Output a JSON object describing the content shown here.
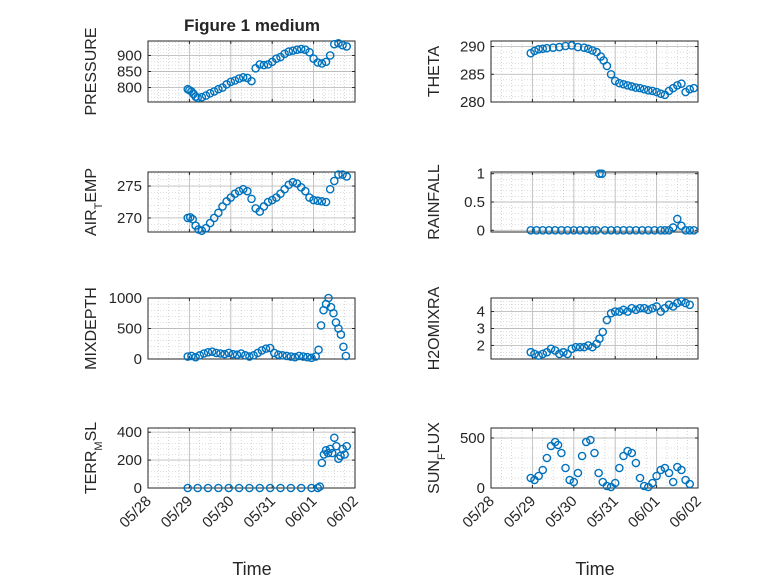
{
  "figure": {
    "title": "Figure 1 medium",
    "xlabel_left": "Time",
    "xlabel_right": "Time",
    "x_tick_labels": [
      "05/28",
      "05/29",
      "05/30",
      "05/31",
      "06/01",
      "06/02"
    ],
    "marker_color": "#0072BD",
    "grid_color": "#bdbdbd"
  },
  "chart_data": [
    {
      "type": "scatter",
      "panel": "left-1",
      "ylabel": "PRESSURE",
      "yticks": [
        800,
        850,
        900
      ],
      "ylim": [
        755,
        945
      ],
      "xlim": [
        0,
        5
      ],
      "x": [
        0.96,
        1.0,
        1.05,
        1.1,
        1.15,
        1.2,
        1.3,
        1.4,
        1.5,
        1.6,
        1.7,
        1.8,
        1.9,
        2.0,
        2.1,
        2.2,
        2.3,
        2.4,
        2.5,
        2.6,
        2.7,
        2.8,
        2.9,
        3.0,
        3.1,
        3.2,
        3.3,
        3.4,
        3.5,
        3.6,
        3.7,
        3.8,
        3.9,
        4.0,
        4.1,
        4.2,
        4.3,
        4.4,
        4.5,
        4.6,
        4.7,
        4.8
      ],
      "values": [
        795,
        792,
        788,
        780,
        772,
        768,
        770,
        775,
        782,
        788,
        795,
        800,
        810,
        818,
        822,
        828,
        832,
        830,
        820,
        860,
        872,
        870,
        872,
        880,
        890,
        895,
        905,
        912,
        915,
        918,
        920,
        918,
        910,
        890,
        878,
        875,
        880,
        900,
        935,
        938,
        932,
        928
      ]
    },
    {
      "type": "scatter",
      "panel": "right-1",
      "ylabel": "THETA",
      "yticks": [
        280,
        285,
        290
      ],
      "ylim": [
        280,
        291
      ],
      "xlim": [
        0,
        5
      ],
      "x": [
        0.96,
        1.05,
        1.15,
        1.25,
        1.35,
        1.5,
        1.65,
        1.8,
        1.95,
        2.1,
        2.25,
        2.35,
        2.45,
        2.55,
        2.65,
        2.72,
        2.8,
        2.9,
        3.0,
        3.1,
        3.2,
        3.3,
        3.4,
        3.5,
        3.6,
        3.7,
        3.8,
        3.9,
        4.0,
        4.1,
        4.2,
        4.3,
        4.4,
        4.5,
        4.6,
        4.7,
        4.8,
        4.9
      ],
      "values": [
        288.8,
        289.2,
        289.5,
        289.6,
        289.7,
        289.8,
        289.9,
        290.1,
        290.2,
        289.9,
        289.8,
        289.6,
        289.3,
        289.0,
        288.2,
        287.5,
        286.5,
        285.0,
        283.8,
        283.4,
        283.2,
        283.0,
        282.8,
        282.6,
        282.5,
        282.3,
        282.1,
        282.0,
        281.8,
        281.5,
        281.3,
        282.0,
        282.5,
        283.0,
        283.3,
        281.8,
        282.3,
        282.5
      ]
    },
    {
      "type": "scatter",
      "panel": "left-2",
      "ylabel": "AIR_TEMP",
      "yticks": [
        270,
        275
      ],
      "ylim": [
        267.8,
        277.2
      ],
      "xlim": [
        0,
        5
      ],
      "x": [
        0.96,
        1.02,
        1.08,
        1.15,
        1.22,
        1.3,
        1.4,
        1.5,
        1.6,
        1.7,
        1.8,
        1.9,
        2.0,
        2.1,
        2.2,
        2.3,
        2.4,
        2.5,
        2.6,
        2.7,
        2.8,
        2.9,
        3.0,
        3.1,
        3.2,
        3.3,
        3.4,
        3.5,
        3.6,
        3.7,
        3.8,
        3.9,
        4.0,
        4.1,
        4.2,
        4.3,
        4.4,
        4.5,
        4.6,
        4.7,
        4.8
      ],
      "values": [
        270.0,
        270.1,
        269.8,
        268.8,
        268.2,
        268.0,
        268.4,
        269.2,
        270.0,
        270.8,
        271.8,
        272.6,
        273.2,
        273.8,
        274.2,
        274.5,
        274.2,
        273.0,
        271.5,
        271.0,
        271.8,
        272.5,
        272.8,
        273.2,
        273.8,
        274.5,
        275.2,
        275.6,
        275.4,
        274.8,
        274.2,
        273.2,
        272.8,
        272.7,
        272.6,
        272.5,
        274.5,
        275.8,
        276.8,
        276.8,
        276.5
      ]
    },
    {
      "type": "scatter",
      "panel": "right-2",
      "ylabel": "RAINFALL",
      "yticks": [
        0,
        0.5,
        1
      ],
      "ylim": [
        -0.03,
        1.03
      ],
      "xlim": [
        0,
        5
      ],
      "x": [
        0.96,
        1.1,
        1.25,
        1.4,
        1.55,
        1.7,
        1.85,
        2.0,
        2.15,
        2.3,
        2.45,
        2.55,
        2.62,
        2.68,
        2.75,
        2.9,
        3.05,
        3.2,
        3.35,
        3.5,
        3.65,
        3.8,
        3.95,
        4.1,
        4.2,
        4.3,
        4.4,
        4.5,
        4.6,
        4.7,
        4.8,
        4.9
      ],
      "values": [
        0,
        0,
        0,
        0,
        0,
        0,
        0,
        0,
        0,
        0,
        0,
        0,
        1,
        1,
        0,
        0,
        0,
        0,
        0,
        0,
        0,
        0,
        0,
        0,
        0,
        0,
        0.05,
        0.2,
        0.08,
        0,
        0,
        0
      ]
    },
    {
      "type": "scatter",
      "panel": "left-3",
      "ylabel": "MIXDEPTH",
      "yticks": [
        0,
        500,
        1000
      ],
      "ylim": [
        0,
        1000
      ],
      "xlim": [
        0,
        5
      ],
      "x": [
        0.96,
        1.05,
        1.15,
        1.25,
        1.35,
        1.45,
        1.55,
        1.65,
        1.75,
        1.85,
        1.95,
        2.05,
        2.15,
        2.25,
        2.35,
        2.45,
        2.55,
        2.65,
        2.75,
        2.85,
        2.95,
        3.05,
        3.15,
        3.25,
        3.35,
        3.45,
        3.55,
        3.65,
        3.75,
        3.85,
        3.95,
        4.05,
        4.12,
        4.18,
        4.24,
        4.3,
        4.36,
        4.42,
        4.48,
        4.54,
        4.6,
        4.66,
        4.72,
        4.78
      ],
      "values": [
        40,
        50,
        30,
        60,
        90,
        110,
        120,
        100,
        90,
        80,
        100,
        80,
        70,
        90,
        60,
        40,
        60,
        100,
        140,
        170,
        180,
        100,
        70,
        60,
        50,
        40,
        30,
        50,
        40,
        30,
        20,
        40,
        150,
        550,
        800,
        900,
        1000,
        850,
        750,
        600,
        500,
        400,
        200,
        50
      ]
    },
    {
      "type": "scatter",
      "panel": "right-3",
      "ylabel": "H2OMIXRA",
      "yticks": [
        2,
        3,
        4
      ],
      "ylim": [
        1.2,
        4.8
      ],
      "xlim": [
        0,
        5
      ],
      "x": [
        0.96,
        1.05,
        1.15,
        1.25,
        1.35,
        1.45,
        1.55,
        1.65,
        1.75,
        1.85,
        1.95,
        2.05,
        2.15,
        2.25,
        2.35,
        2.45,
        2.55,
        2.62,
        2.7,
        2.8,
        2.9,
        3.0,
        3.1,
        3.2,
        3.3,
        3.4,
        3.5,
        3.6,
        3.7,
        3.8,
        3.9,
        4.0,
        4.1,
        4.2,
        4.3,
        4.4,
        4.5,
        4.6,
        4.7,
        4.8
      ],
      "values": [
        1.6,
        1.5,
        1.4,
        1.5,
        1.6,
        1.8,
        1.7,
        1.5,
        1.6,
        1.5,
        1.8,
        1.9,
        1.9,
        1.9,
        2.0,
        1.9,
        2.1,
        2.4,
        2.8,
        3.5,
        3.9,
        4.0,
        4.0,
        4.1,
        4.0,
        4.2,
        4.1,
        4.2,
        4.2,
        4.1,
        4.2,
        4.3,
        4.0,
        4.2,
        4.4,
        4.3,
        4.5,
        4.6,
        4.5,
        4.4
      ]
    },
    {
      "type": "scatter",
      "panel": "left-4",
      "ylabel": "TERR_MSL",
      "yticks": [
        0,
        200,
        400
      ],
      "ylim": [
        0,
        430
      ],
      "xlim": [
        0,
        5
      ],
      "x": [
        0.96,
        1.2,
        1.45,
        1.7,
        1.95,
        2.2,
        2.45,
        2.7,
        2.95,
        3.2,
        3.45,
        3.7,
        3.95,
        4.1,
        4.15,
        4.2,
        4.25,
        4.3,
        4.35,
        4.4,
        4.45,
        4.5,
        4.55,
        4.6,
        4.65,
        4.7,
        4.75,
        4.8
      ],
      "values": [
        0,
        0,
        0,
        0,
        0,
        0,
        0,
        0,
        0,
        0,
        0,
        0,
        0,
        0,
        10,
        180,
        240,
        270,
        250,
        280,
        250,
        360,
        300,
        210,
        230,
        280,
        240,
        300
      ]
    },
    {
      "type": "scatter",
      "panel": "right-4",
      "ylabel": "SUN_FLUX",
      "yticks": [
        0,
        500
      ],
      "ylim": [
        0,
        600
      ],
      "xlim": [
        0,
        5
      ],
      "x": [
        0.96,
        1.05,
        1.15,
        1.25,
        1.35,
        1.45,
        1.55,
        1.62,
        1.7,
        1.8,
        1.9,
        2.0,
        2.1,
        2.2,
        2.3,
        2.4,
        2.5,
        2.6,
        2.7,
        2.8,
        2.9,
        3.0,
        3.1,
        3.2,
        3.3,
        3.4,
        3.5,
        3.6,
        3.7,
        3.8,
        3.9,
        4.0,
        4.1,
        4.2,
        4.3,
        4.4,
        4.5,
        4.6,
        4.7,
        4.8
      ],
      "values": [
        100,
        80,
        120,
        180,
        300,
        420,
        460,
        430,
        350,
        200,
        80,
        60,
        150,
        320,
        460,
        480,
        350,
        150,
        60,
        20,
        10,
        50,
        200,
        320,
        370,
        350,
        250,
        100,
        20,
        10,
        50,
        120,
        180,
        200,
        150,
        60,
        210,
        180,
        80,
        40
      ]
    }
  ]
}
